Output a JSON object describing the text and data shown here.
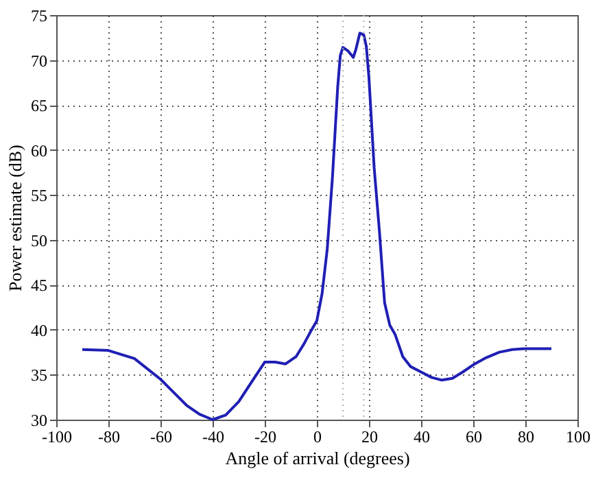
{
  "chart_data": {
    "type": "line",
    "xlabel": "Angle of arrival (degrees)",
    "ylabel": "Power estimate (dB)",
    "x": [
      -90,
      -80,
      -70,
      -60,
      -50,
      -45,
      -40,
      -35,
      -30,
      -25,
      -20,
      -16,
      -12,
      -8,
      -5,
      -2,
      0,
      2,
      4,
      6,
      8,
      9,
      10,
      12,
      14,
      15,
      16.5,
      18,
      19,
      20,
      21,
      22,
      24,
      26,
      28,
      30,
      33,
      36,
      40,
      44,
      48,
      52,
      56,
      60,
      65,
      70,
      75,
      80,
      90
    ],
    "series": [
      {
        "color": "#1f1fb4",
        "values": [
          37.8,
          37.7,
          36.8,
          34.5,
          31.6,
          30.6,
          30.0,
          30.5,
          32.0,
          34.2,
          36.4,
          36.4,
          36.2,
          37.0,
          38.4,
          40.0,
          41.0,
          44.0,
          49.0,
          57.0,
          67.0,
          70.5,
          71.4,
          71.0,
          70.3,
          71.2,
          73.0,
          72.8,
          71.5,
          68.0,
          63.0,
          58.0,
          51.0,
          43.0,
          40.5,
          39.5,
          37.0,
          35.9,
          35.3,
          34.7,
          34.4,
          34.6,
          35.3,
          36.1,
          36.9,
          37.5,
          37.8,
          37.9,
          37.9
        ]
      }
    ],
    "xlim": [
      -100,
      100
    ],
    "xticks": [
      -100,
      -80,
      -60,
      -40,
      -20,
      0,
      20,
      40,
      60,
      80,
      100
    ],
    "ylim": [
      30,
      75
    ],
    "yticks": [
      30,
      35,
      40,
      45,
      50,
      55,
      60,
      65,
      70,
      75
    ],
    "grid": true,
    "marker": "none",
    "line_style": "solid",
    "ref_lines": [
      {
        "axis": "x",
        "value": 10,
        "label": null,
        "color": "#b0b0b0",
        "line_style": "dotted"
      },
      {
        "axis": "x",
        "value": 18,
        "label": null,
        "color": "#b0b0b0",
        "line_style": "dotted"
      }
    ]
  }
}
